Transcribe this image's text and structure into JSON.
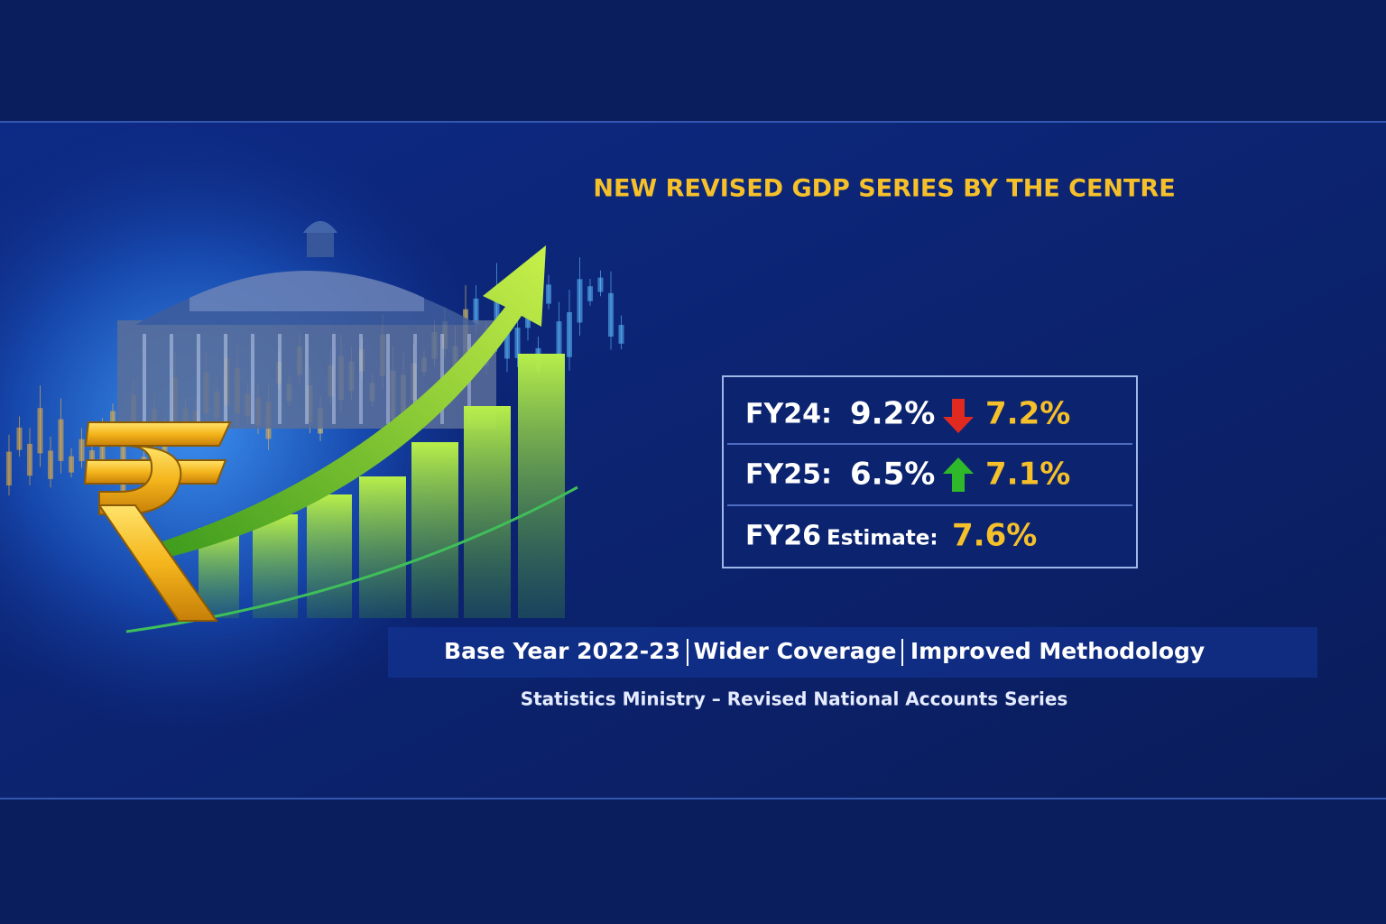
{
  "header": {
    "title": "NEW REVISED GDP SERIES BY THE CENTRE"
  },
  "table": {
    "rows": [
      {
        "label": "FY24:",
        "old": "9.2%",
        "change": "down",
        "new": "7.2%"
      },
      {
        "label": "FY25:",
        "old": "6.5%",
        "change": "up",
        "new": "7.1%"
      },
      {
        "label": "FY26",
        "label_note": "Estimate:",
        "new": "7.6%"
      }
    ]
  },
  "features": [
    "Base Year 2022-23",
    "Wider Coverage",
    "Improved Methodology"
  ],
  "source": "Statistics Ministry – Revised National Accounts Series"
}
